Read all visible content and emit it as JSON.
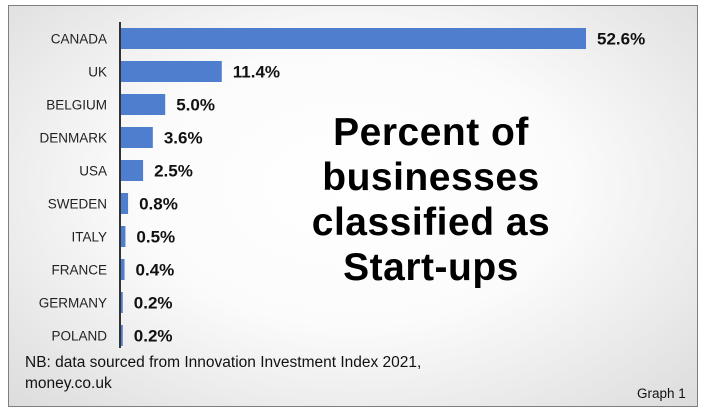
{
  "chart_data": {
    "type": "bar",
    "orientation": "horizontal",
    "title": "Percent of businesses classified as Start-ups",
    "categories": [
      "CANADA",
      "UK",
      "BELGIUM",
      "DENMARK",
      "USA",
      "SWEDEN",
      "ITALY",
      "FRANCE",
      "GERMANY",
      "POLAND"
    ],
    "values": [
      52.6,
      11.4,
      5.0,
      3.6,
      2.5,
      0.8,
      0.5,
      0.4,
      0.2,
      0.2
    ],
    "value_labels": [
      "52.6%",
      "11.4%",
      "5.0%",
      "3.6%",
      "2.5%",
      "0.8%",
      "0.5%",
      "0.4%",
      "0.2%",
      "0.2%"
    ],
    "xlim": [
      0,
      52.6
    ],
    "grid": false,
    "bar_color": "#4f7ecf"
  },
  "footnote": "NB: data sourced from Innovation Investment Index 2021, money.co.uk",
  "graph_label": "Graph 1"
}
